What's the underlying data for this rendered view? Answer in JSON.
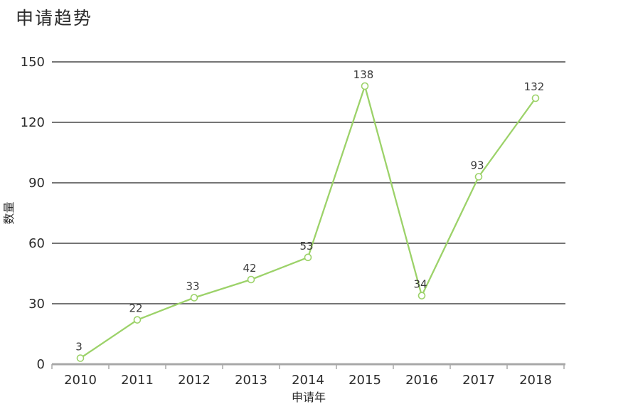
{
  "title": "申请趋势",
  "chart_data": {
    "type": "line",
    "title": "申请趋势",
    "xlabel": "申请年",
    "ylabel": "数量",
    "categories": [
      "2010",
      "2011",
      "2012",
      "2013",
      "2014",
      "2015",
      "2016",
      "2017",
      "2018"
    ],
    "values": [
      3,
      22,
      33,
      42,
      53,
      138,
      34,
      93,
      132
    ],
    "ylim": [
      0,
      150
    ],
    "yticks": [
      0,
      30,
      60,
      90,
      120,
      150
    ],
    "grid": true,
    "legend": "none",
    "line_color": "#9cd269",
    "marker": "open-circle",
    "marker_fill": "#ffffff",
    "gridline_color": "#757575",
    "axis_color": "#a8a8a8",
    "text_color": "#2b2b2b",
    "data_label_color": "#3a3a3a"
  }
}
